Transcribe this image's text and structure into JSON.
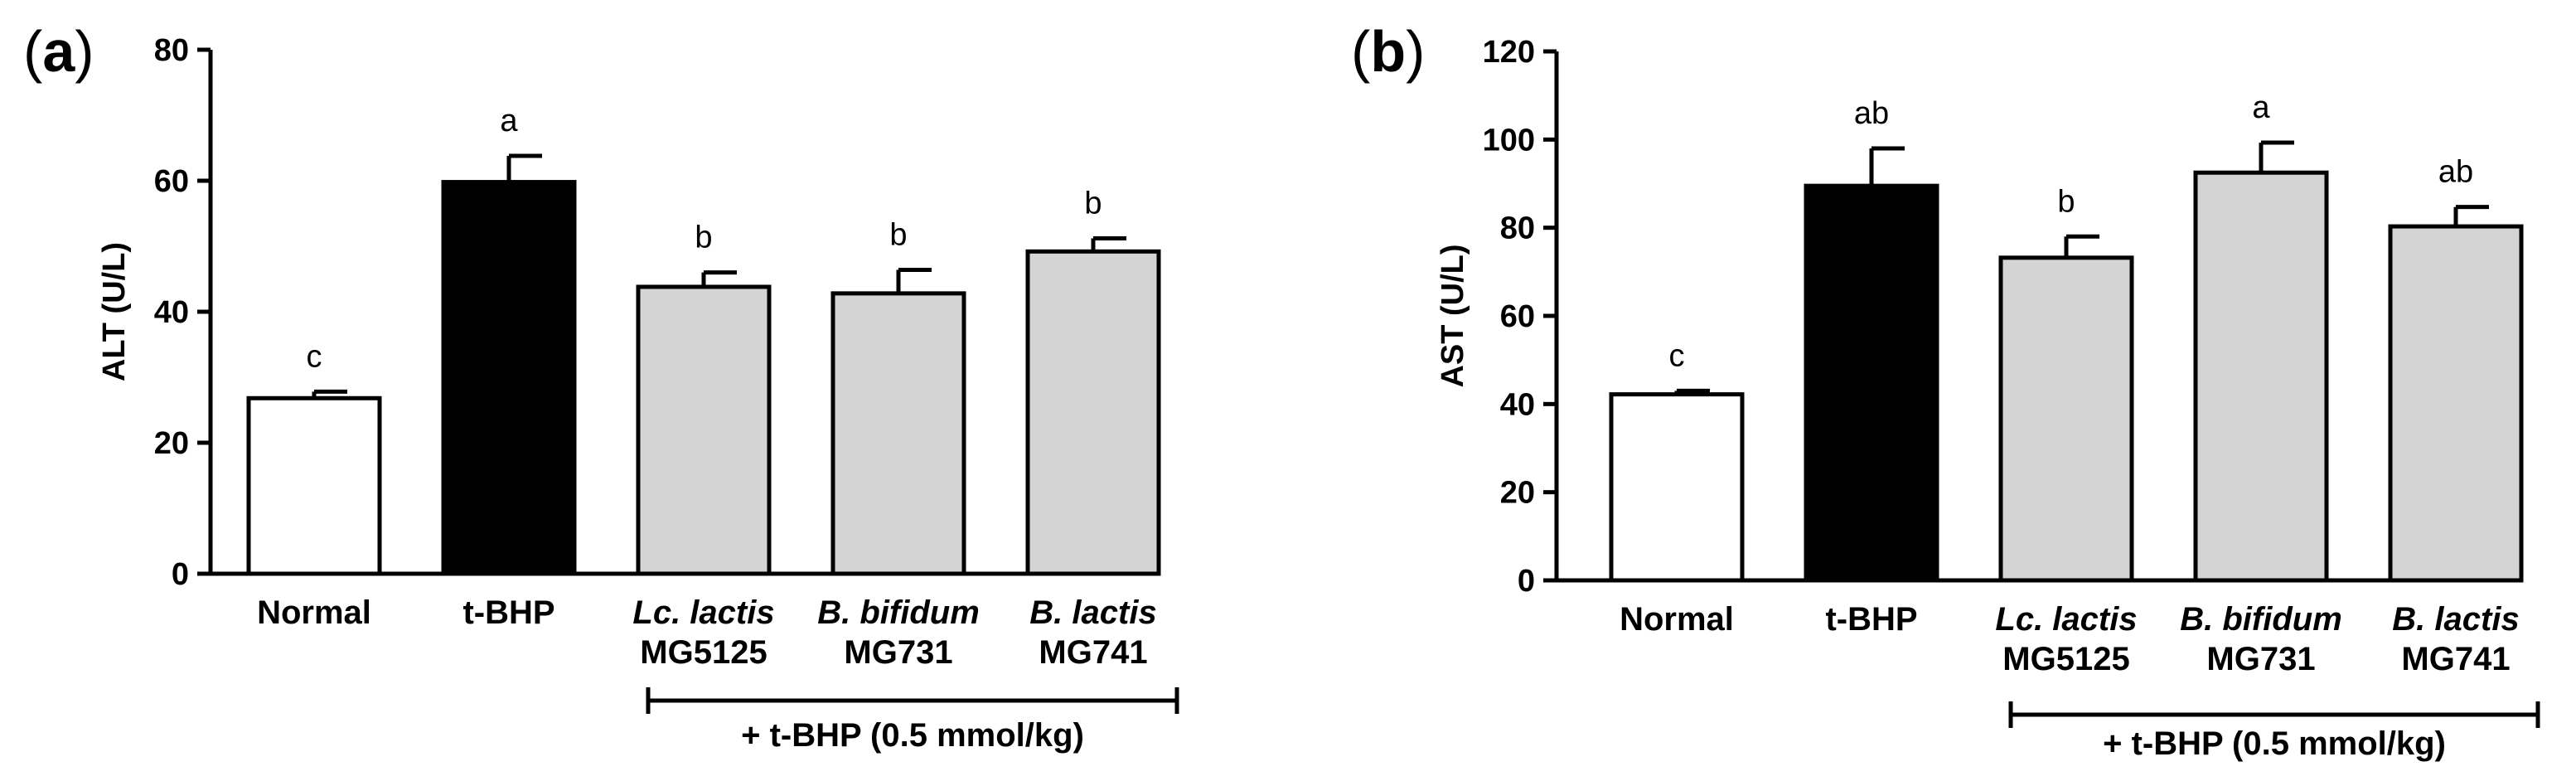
{
  "figure": {
    "bracket_label": "+ t-BHP (0.5 mmol/kg)"
  },
  "chart_data": [
    {
      "type": "bar",
      "panel": "(a)",
      "panel_letter": "a",
      "ylabel": "ALT (U/L)",
      "ylim": [
        0,
        80
      ],
      "yticks": [
        0,
        20,
        40,
        60,
        80
      ],
      "categories": [
        {
          "line1": "Normal",
          "line2": "",
          "italic": false
        },
        {
          "line1": "t-BHP",
          "line2": "",
          "italic": false
        },
        {
          "line1": "Lc. lactis",
          "line2": "MG5125",
          "italic": true
        },
        {
          "line1": "B. bifidum",
          "line2": "MG731",
          "italic": true
        },
        {
          "line1": "B. lactis",
          "line2": "MG741",
          "italic": true
        }
      ],
      "values": [
        26.8,
        59.8,
        43.8,
        42.8,
        49.2
      ],
      "errors": [
        1.0,
        4.0,
        2.2,
        3.6,
        2.0
      ],
      "significance": [
        "c",
        "a",
        "b",
        "b",
        "b"
      ],
      "fills": [
        "#ffffff",
        "#000000",
        "#d4d4d4",
        "#d4d4d4",
        "#d4d4d4"
      ],
      "bracket_label": "+ t-BHP (0.5 mmol/kg)"
    },
    {
      "type": "bar",
      "panel": "(b)",
      "panel_letter": "b",
      "ylabel": "AST (U/L)",
      "ylim": [
        0,
        120
      ],
      "yticks": [
        0,
        20,
        40,
        60,
        80,
        100,
        120
      ],
      "categories": [
        {
          "line1": "Normal",
          "line2": "",
          "italic": false
        },
        {
          "line1": "t-BHP",
          "line2": "",
          "italic": false
        },
        {
          "line1": "Lc. lactis",
          "line2": "MG5125",
          "italic": true
        },
        {
          "line1": "B. bifidum",
          "line2": "MG731",
          "italic": true
        },
        {
          "line1": "B. lactis",
          "line2": "MG741",
          "italic": true
        }
      ],
      "values": [
        42.2,
        89.5,
        73.2,
        92.5,
        80.3
      ],
      "errors": [
        0.8,
        8.5,
        4.8,
        6.8,
        4.4
      ],
      "significance": [
        "c",
        "ab",
        "b",
        "a",
        "ab"
      ],
      "fills": [
        "#ffffff",
        "#000000",
        "#d4d4d4",
        "#d4d4d4",
        "#d4d4d4"
      ],
      "bracket_label": "+ t-BHP (0.5 mmol/kg)"
    }
  ]
}
